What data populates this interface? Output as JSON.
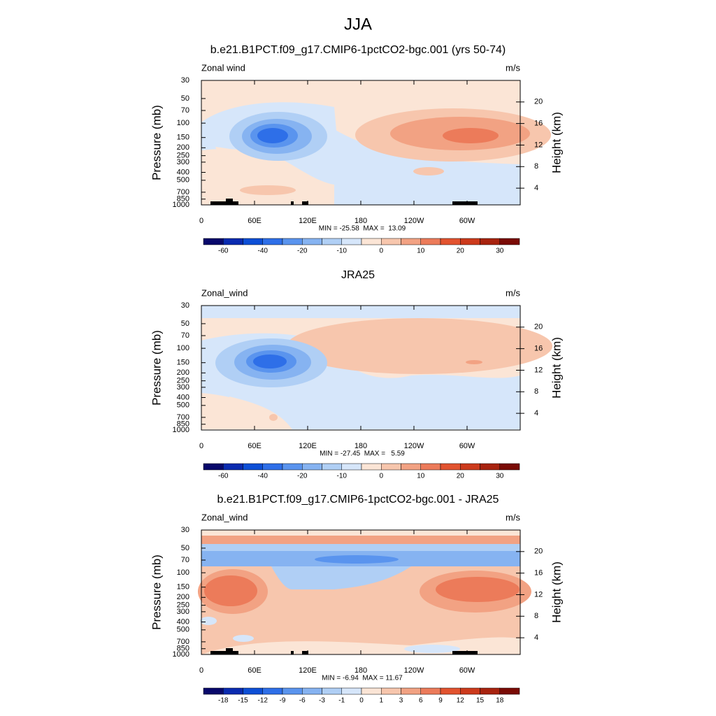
{
  "title": "JJA",
  "chart_data": [
    {
      "type": "contour",
      "title": "b.e21.B1PCT.f09_g17.CMIP6-1pctCO2-bgc.001 (yrs 50-74)",
      "left_label": "Zonal wind",
      "right_label": "m/s",
      "stats": "MIN = -25.58  MAX =  13.09",
      "ylabel": "Pressure (mb)",
      "y2label": "Height (km)",
      "ylog": true,
      "ylim": [
        1000,
        30
      ],
      "yticks": [
        30,
        50,
        70,
        100,
        150,
        200,
        250,
        300,
        400,
        500,
        700,
        850,
        1000
      ],
      "y2lim": [
        0.9,
        24
      ],
      "y2ticks": [
        4,
        8,
        12,
        16,
        20
      ],
      "xlim": [
        0,
        360
      ],
      "xticks": [
        0,
        {
          "value": 60,
          "label": "60E"
        },
        {
          "value": 120,
          "label": "120E"
        },
        180,
        {
          "value": 240,
          "label": "120W"
        },
        {
          "value": 300,
          "label": "60W"
        }
      ],
      "colorbar": {
        "colors": [
          "#08086b",
          "#0a2bb0",
          "#0d4fd6",
          "#2e6fe8",
          "#5a94ee",
          "#86b3f1",
          "#b0cff5",
          "#d6e6fa",
          "#fbe5d6",
          "#f7c6ad",
          "#f2a283",
          "#ec7b5a",
          "#e2532f",
          "#cc3a1c",
          "#a8230f",
          "#7a0b05"
        ],
        "levels": [
          -60,
          null,
          -40,
          null,
          -20,
          null,
          -10,
          null,
          0,
          null,
          10,
          null,
          20,
          null,
          30
        ]
      }
    },
    {
      "type": "contour",
      "title": "JRA25",
      "left_label": "Zonal_wind",
      "right_label": "m/s",
      "stats": "MIN = -27.45  MAX =   5.59",
      "ylabel": "Pressure (mb)",
      "y2label": "Height (km)",
      "ylog": true,
      "ylim": [
        1000,
        30
      ],
      "yticks": [
        30,
        50,
        70,
        100,
        150,
        200,
        250,
        300,
        400,
        500,
        700,
        850,
        1000
      ],
      "y2lim": [
        0.9,
        24
      ],
      "y2ticks": [
        4,
        8,
        12,
        16,
        20
      ],
      "xlim": [
        0,
        360
      ],
      "xticks": [
        0,
        {
          "value": 60,
          "label": "60E"
        },
        {
          "value": 120,
          "label": "120E"
        },
        180,
        {
          "value": 240,
          "label": "120W"
        },
        {
          "value": 300,
          "label": "60W"
        }
      ],
      "colorbar": {
        "colors": [
          "#08086b",
          "#0a2bb0",
          "#0d4fd6",
          "#2e6fe8",
          "#5a94ee",
          "#86b3f1",
          "#b0cff5",
          "#d6e6fa",
          "#fbe5d6",
          "#f7c6ad",
          "#f2a283",
          "#ec7b5a",
          "#e2532f",
          "#cc3a1c",
          "#a8230f",
          "#7a0b05"
        ],
        "levels": [
          -60,
          null,
          -40,
          null,
          -20,
          null,
          -10,
          null,
          0,
          null,
          10,
          null,
          20,
          null,
          30
        ]
      }
    },
    {
      "type": "contour",
      "title": "b.e21.B1PCT.f09_g17.CMIP6-1pctCO2-bgc.001 - JRA25",
      "left_label": "Zonal_wind",
      "right_label": "m/s",
      "stats": "MIN = -6.94  MAX = 11.67",
      "ylabel": "Pressure (mb)",
      "y2label": "Height (km)",
      "ylog": true,
      "ylim": [
        1000,
        30
      ],
      "yticks": [
        30,
        50,
        70,
        100,
        150,
        200,
        250,
        300,
        400,
        500,
        700,
        850,
        1000
      ],
      "y2lim": [
        0.9,
        24
      ],
      "y2ticks": [
        4,
        8,
        12,
        16,
        20
      ],
      "xlim": [
        0,
        360
      ],
      "xticks": [
        0,
        {
          "value": 60,
          "label": "60E"
        },
        {
          "value": 120,
          "label": "120E"
        },
        180,
        {
          "value": 240,
          "label": "120W"
        },
        {
          "value": 300,
          "label": "60W"
        }
      ],
      "colorbar": {
        "colors": [
          "#08086b",
          "#0a2bb0",
          "#0d4fd6",
          "#2e6fe8",
          "#5a94ee",
          "#86b3f1",
          "#b0cff5",
          "#d6e6fa",
          "#fbe5d6",
          "#f7c6ad",
          "#f2a283",
          "#ec7b5a",
          "#e2532f",
          "#cc3a1c",
          "#a8230f",
          "#7a0b05"
        ],
        "levels": [
          -18,
          -15,
          -12,
          -9,
          -6,
          -3,
          -1,
          0,
          1,
          3,
          6,
          9,
          12,
          15,
          18
        ]
      }
    }
  ]
}
